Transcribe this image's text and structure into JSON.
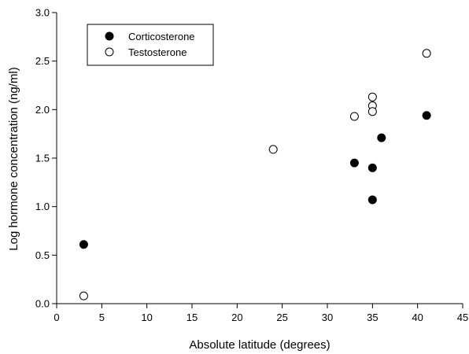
{
  "chart_data": {
    "type": "scatter",
    "xlabel": "Absolute latitude (degrees)",
    "ylabel": "Log hormone concentration (ng/ml)",
    "xlim": [
      0,
      45
    ],
    "ylim": [
      0.0,
      3.0
    ],
    "x_ticks": [
      "0",
      "5",
      "10",
      "15",
      "20",
      "25",
      "30",
      "35",
      "40",
      "45"
    ],
    "y_ticks": [
      "0.0",
      "0.5",
      "1.0",
      "1.5",
      "2.0",
      "2.5",
      "3.0"
    ],
    "grid": false,
    "legend_position": "top-left",
    "series": [
      {
        "name": "Corticosterone",
        "marker": "filled-circle",
        "color": "#000000",
        "points": [
          {
            "x": 3,
            "y": 0.61
          },
          {
            "x": 33,
            "y": 1.45
          },
          {
            "x": 35,
            "y": 1.4
          },
          {
            "x": 35,
            "y": 1.07
          },
          {
            "x": 36,
            "y": 1.71
          },
          {
            "x": 41,
            "y": 1.94
          }
        ]
      },
      {
        "name": "Testosterone",
        "marker": "open-circle",
        "color": "#000000",
        "points": [
          {
            "x": 3,
            "y": 0.08
          },
          {
            "x": 24,
            "y": 1.59
          },
          {
            "x": 33,
            "y": 1.93
          },
          {
            "x": 35,
            "y": 2.13
          },
          {
            "x": 35,
            "y": 2.04
          },
          {
            "x": 35,
            "y": 1.98
          },
          {
            "x": 41,
            "y": 2.58
          }
        ]
      }
    ]
  }
}
